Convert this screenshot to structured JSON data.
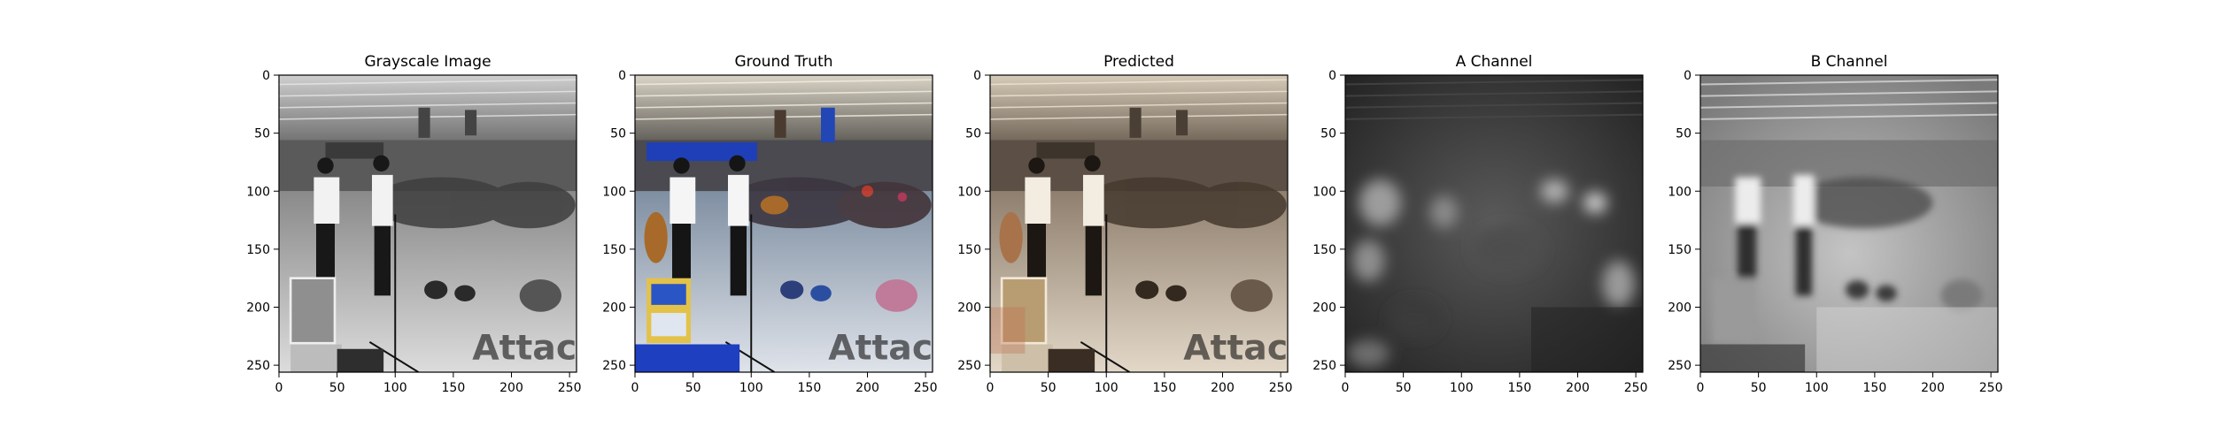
{
  "figure": {
    "background_color": "#ffffff",
    "panels": [
      {
        "key": "grayscale",
        "title": "Grayscale Image",
        "image_content": "grayscale photograph of supermarket musicians with guitars and an onlooking crowd, cereal box sign in foreground",
        "colormap": "gray",
        "watermark": "Attack!"
      },
      {
        "key": "ground-truth",
        "title": "Ground Truth",
        "image_content": "full color photograph of the same supermarket performance, blue banner and colorful cereal box visible",
        "colormap": "color",
        "watermark": "Attack!"
      },
      {
        "key": "predicted",
        "title": "Predicted",
        "image_content": "colorized prediction of the same scene with muted sepia/brown tones",
        "colormap": "sepia",
        "watermark": "Attack!"
      },
      {
        "key": "a-channel",
        "title": "A Channel",
        "image_content": "dark grayscale map of the predicted A chroma channel, blurry bright spots",
        "colormap": "gray-dark"
      },
      {
        "key": "b-channel",
        "title": "B Channel",
        "image_content": "light grayscale map of the predicted B chroma channel, blurry shapes",
        "colormap": "gray-light"
      }
    ],
    "axes": {
      "x_ticks": [
        0,
        50,
        100,
        150,
        200,
        250
      ],
      "y_ticks": [
        0,
        50,
        100,
        150,
        200,
        250
      ],
      "x_range": [
        0,
        256
      ],
      "y_range": [
        0,
        256
      ],
      "y_inverted": true
    }
  }
}
